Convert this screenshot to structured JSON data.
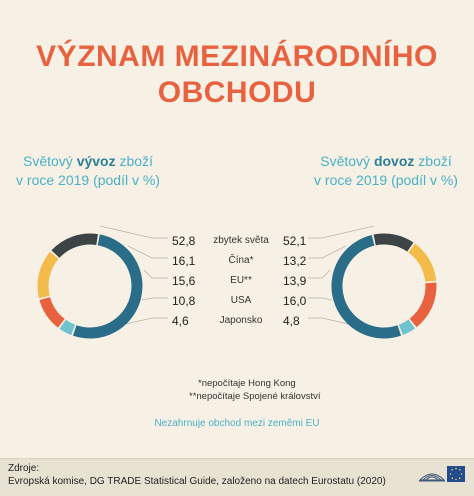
{
  "title": {
    "line1": "VÝZNAM MEZINÁRODNÍHO",
    "line2": "OBCHODU"
  },
  "colors": {
    "title": "#e8623f",
    "accent": "#4bb0c7",
    "series": [
      "#2a6d88",
      "#3d4446",
      "#f2bb4a",
      "#e8623f",
      "#6fc3cc"
    ]
  },
  "chart_data": [
    {
      "type": "pie",
      "subtitle_prefix": "Světový ",
      "subtitle_bold": "vývoz",
      "subtitle_suffix": " zboží",
      "subtitle_line2": "v roce 2019 (podíl v %)",
      "categories": [
        "zbytek světa",
        "Čína",
        "EU",
        "USA",
        "Japonsko"
      ],
      "values": [
        52.8,
        16.1,
        15.6,
        10.8,
        4.6
      ],
      "labels": [
        "52,8",
        "16,1",
        "15,6",
        "10,8",
        "4,6"
      ]
    },
    {
      "type": "pie",
      "subtitle_prefix": "Světový ",
      "subtitle_bold": "dovoz",
      "subtitle_suffix": " zboží",
      "subtitle_line2": "v roce 2019 (podíl v %)",
      "categories": [
        "zbytek světa",
        "Čína",
        "EU",
        "USA",
        "Japonsko"
      ],
      "values": [
        52.1,
        13.2,
        13.9,
        16.0,
        4.8
      ],
      "labels": [
        "52,1",
        "13,2",
        "13,9",
        "16,0",
        "4,8"
      ]
    }
  ],
  "category_labels": [
    "zbytek světa",
    "Čína*",
    "EU**",
    "USA",
    "Japonsko"
  ],
  "notes": {
    "note1": "*nepočítaje Hong Kong",
    "note2": "**nepočítaje Spojené království",
    "note3": "Nezahrnuje obchod mezi zeměmi EU"
  },
  "footer": {
    "source_label": "Zdroje:",
    "source_text": "Evropská komise, DG TRADE Statistical Guide, založeno na datech Eurostatu (2020)",
    "logo_icon": "european-parliament-logo-icon"
  }
}
